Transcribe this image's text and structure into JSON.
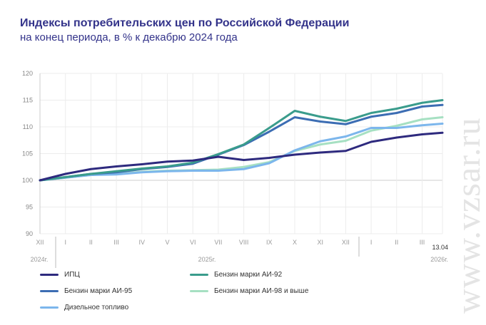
{
  "chart_data": {
    "type": "line",
    "title": "Индексы потребительских цен по Российской Федерации",
    "subtitle": "на конец периода, в % к декабрю 2024 года",
    "categories": [
      "XII",
      "I",
      "II",
      "III",
      "IV",
      "V",
      "VI",
      "VII",
      "VIII",
      "IX",
      "X",
      "XI",
      "XII",
      "I",
      "II",
      "III",
      "13.04"
    ],
    "year_labels": [
      "2024г.",
      "2025г.",
      "2026г."
    ],
    "ylim": [
      90,
      120
    ],
    "yticks": [
      90,
      95,
      100,
      105,
      110,
      115,
      120
    ],
    "grid": true,
    "legend_position": "bottom",
    "series": [
      {
        "name": "ИПЦ",
        "color": "#2e2a7e",
        "values": [
          100,
          101.2,
          102.1,
          102.6,
          103.0,
          103.5,
          103.7,
          104.4,
          103.8,
          104.2,
          104.8,
          105.2,
          105.5,
          107.2,
          108.0,
          108.6,
          108.9
        ]
      },
      {
        "name": "Бензин марки АИ-92",
        "color": "#3a9c8c",
        "values": [
          100,
          100.6,
          101.2,
          101.7,
          102.2,
          102.6,
          103.3,
          104.9,
          106.7,
          109.8,
          113.0,
          111.9,
          111.1,
          112.6,
          113.4,
          114.5,
          115.0
        ]
      },
      {
        "name": "Бензин марки АИ-95",
        "color": "#3c6db3",
        "values": [
          100,
          100.6,
          101.2,
          101.5,
          102.1,
          102.5,
          103.1,
          104.8,
          106.6,
          109.1,
          111.8,
          111.0,
          110.5,
          111.9,
          112.6,
          113.8,
          114.1
        ]
      },
      {
        "name": "Бензин марки АИ-98 и выше",
        "color": "#a6e0c2",
        "values": [
          100,
          100.5,
          101.0,
          101.2,
          101.6,
          101.8,
          101.9,
          102.0,
          102.5,
          103.4,
          105.5,
          106.7,
          107.4,
          109.3,
          110.2,
          111.4,
          111.8
        ]
      },
      {
        "name": "Дизельное топливо",
        "color": "#7cb6ec",
        "values": [
          100,
          100.5,
          101.0,
          101.1,
          101.5,
          101.7,
          101.8,
          101.8,
          102.1,
          103.2,
          105.6,
          107.3,
          108.2,
          109.8,
          109.8,
          110.3,
          110.6
        ]
      }
    ]
  },
  "watermark": "www.vzsar.ru"
}
